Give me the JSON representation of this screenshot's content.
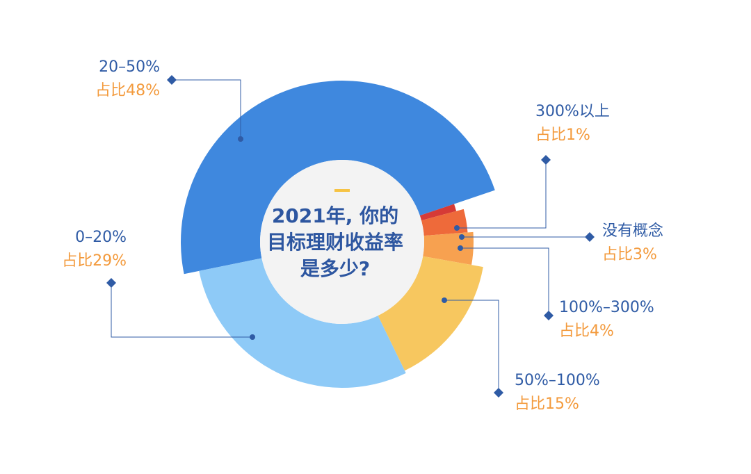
{
  "chart_data": {
    "type": "pie",
    "variant": "rose-donut",
    "title_lines": [
      "2021年, 你的",
      "目标理财收益率",
      "是多少?"
    ],
    "categories": [
      "20–50%",
      "300%以上",
      "没有概念",
      "100%–300%",
      "50%–100%",
      "0–20%"
    ],
    "values": [
      48,
      1,
      3,
      4,
      15,
      29
    ],
    "share_labels": [
      "占比48%",
      "占比1%",
      "占比3%",
      "占比4%",
      "占比15%",
      "占比29%"
    ],
    "unit": "%",
    "colors": [
      "#3f88de",
      "#d63a36",
      "#ee6a3a",
      "#f7a150",
      "#f7c75f",
      "#8ecaf7"
    ],
    "center_color": "#f3f3f3",
    "accent_color": "#f6c344",
    "label_color": "#2f5ba5",
    "share_color": "#f39a3c",
    "leader_color": "#2f5ba5"
  }
}
